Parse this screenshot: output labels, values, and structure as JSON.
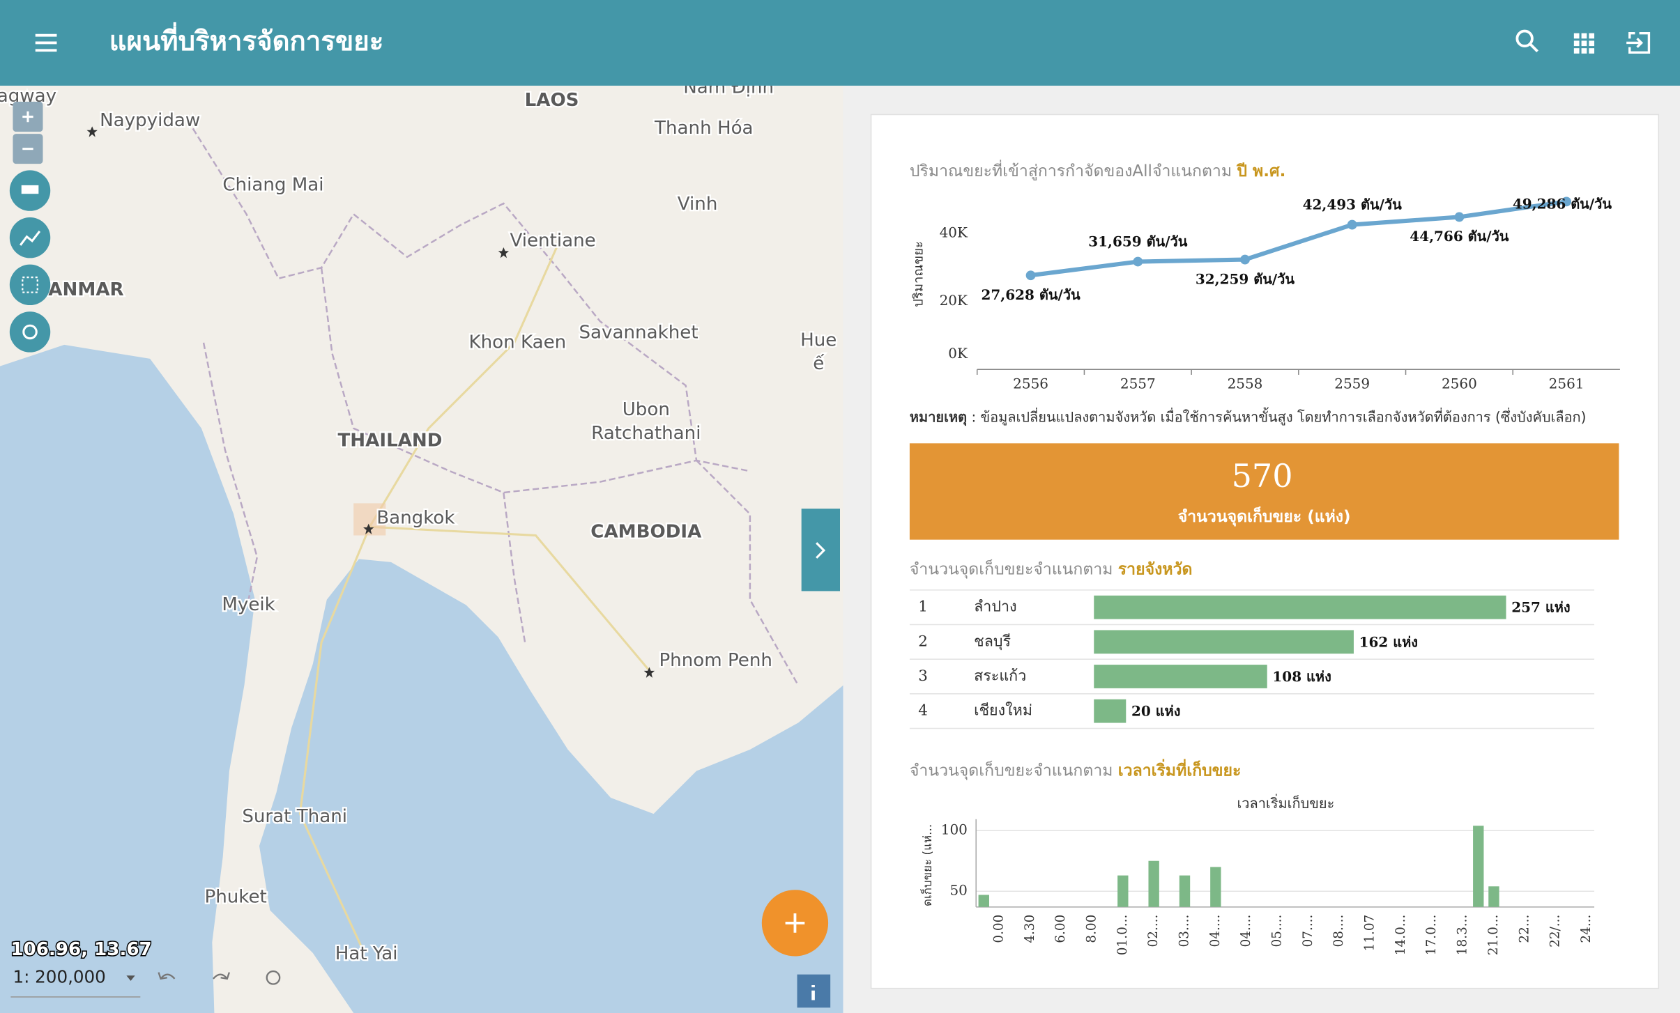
{
  "header": {
    "title": "แผนที่บริหารจัดการขยะ"
  },
  "map": {
    "labels": [
      "agway",
      "Naypyidaw",
      "LAOS",
      "Nam Định",
      "Thanh Hóa",
      "Chiang Mai",
      "Vinh",
      "Vientiane",
      "YANMAR",
      "Khon Kaen",
      "Savannakhet",
      "Hue",
      "ế",
      "THAILAND",
      "Ubon",
      "Ratchathani",
      "Bangkok",
      "CAMBODIA",
      "Myeik",
      "Phnom Penh",
      "Surat Thani",
      "Phuket",
      "Hat Yai"
    ],
    "coordinates": "106.96, 13.67",
    "scale": "1: 200,000"
  },
  "note": {
    "label": "หมายเหตุ",
    "text": " : ข้อมูลเปลี่ยนแปลงตามจังหวัด เมื่อใช้การค้นหาขั้นสูง โดยทำการเลือกจังหวัดที่ต้องการ (ซึ่งบังคับเลือก)"
  },
  "stat": {
    "value": 570,
    "label": "จำนวนจุดเก็บขยะ (แห่ง)"
  },
  "chart_data": [
    {
      "type": "line",
      "title": "ปริมาณขยะที่เข้าสู่การกำจัดของAllจำแนกตาม ",
      "title_highlight": "ปี พ.ศ.",
      "y_label": "ปริมาณขยะ",
      "categories": [
        "2556",
        "2557",
        "2558",
        "2559",
        "2560",
        "2561"
      ],
      "values": [
        27628,
        31659,
        32259,
        42493,
        44766,
        49286
      ],
      "value_labels": [
        "27,628 ตัน/วัน",
        "31,659 ตัน/วัน",
        "32,259 ตัน/วัน",
        "42,493 ตัน/วัน",
        "44,766 ตัน/วัน",
        "49,286 ตัน/วัน"
      ],
      "ylim": [
        0,
        50000
      ],
      "yticks": [
        {
          "value": 0,
          "label": "0K"
        },
        {
          "value": 20000,
          "label": "20K"
        },
        {
          "value": 40000,
          "label": "40K"
        }
      ],
      "color": "#6aa6cf"
    },
    {
      "type": "bar",
      "orientation": "horizontal",
      "title": "จำนวนจุดเก็บขยะจำแนกตาม ",
      "title_highlight": "รายจังหวัด",
      "ranks": [
        1,
        2,
        3,
        4
      ],
      "categories": [
        "ลำปาง",
        "ชลบุรี",
        "สระแก้ว",
        "เชียงใหม่"
      ],
      "values": [
        257,
        162,
        108,
        20
      ],
      "value_labels": [
        "257 แห่ง",
        "162 แห่ง",
        "108 แห่ง",
        "20 แห่ง"
      ],
      "xlim": [
        0,
        312
      ],
      "color": "#7db887"
    },
    {
      "type": "bar",
      "orientation": "vertical",
      "title": "จำนวนจุดเก็บขยะจำแนกตาม ",
      "title_highlight": "เวลาเริ่มที่เก็บขยะ",
      "subtitle": "เวลาเริ่มเก็บขยะ",
      "y_label": "ดเก็บขยะ (แห่...",
      "categories": [
        null,
        "0.00",
        null,
        "4.30",
        null,
        "6.00",
        null,
        "8.00",
        null,
        "01.0...",
        null,
        "02....",
        null,
        "03....",
        null,
        "04....",
        null,
        "04....",
        null,
        "05....",
        null,
        "07....",
        null,
        "08....",
        null,
        "11.07",
        null,
        "14.0...",
        null,
        "17.0...",
        null,
        "18.3...",
        null,
        "21.0...",
        null,
        "22...",
        null,
        "22/...",
        null,
        "24..."
      ],
      "values": [
        47,
        null,
        null,
        null,
        null,
        null,
        null,
        null,
        null,
        63,
        null,
        75,
        null,
        63,
        null,
        70,
        null,
        null,
        null,
        null,
        null,
        null,
        null,
        null,
        null,
        null,
        null,
        null,
        null,
        null,
        null,
        null,
        104,
        54,
        null,
        null,
        null,
        null,
        null,
        null
      ],
      "ylim": [
        37,
        105
      ],
      "yticks": [
        50,
        100
      ],
      "grid": true,
      "color": "#7db887"
    }
  ]
}
